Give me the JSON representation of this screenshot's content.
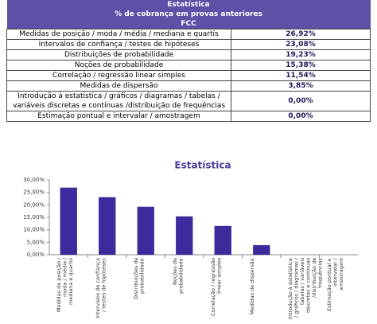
{
  "table": {
    "header": [
      "Estatística",
      "% de cobrança em provas anteriores",
      "FCC"
    ],
    "rows": [
      [
        "Medidas de posição / moda / média / mediana e quartis",
        "26,92%"
      ],
      [
        "Intervalos de confiança / testes de hipóteses",
        "23,08%"
      ],
      [
        "Distribuições de probabilidade",
        "19,23%"
      ],
      [
        "Noções de probabilidade",
        "15,38%"
      ],
      [
        "Correlação / regressão linear simples",
        "11,54%"
      ],
      [
        "Medidas de dispersão",
        "3,85%"
      ],
      [
        "Introdução à estatística / gráficos / diagramas / tabelas / variáveis discretas e contínuas /distribuição de frequências",
        "0,00%"
      ],
      [
        "Estimação pontual e intervalar / amostragem",
        "0,00%"
      ]
    ]
  },
  "chart_data": {
    "type": "bar",
    "title": "Estatística",
    "categories": [
      "Medidas de posição / moda / média / mediana e quartis",
      "Intervalos de confiança / testes de hipóteses",
      "Distribuições de probabilidade",
      "Noções de probabilidade",
      "Correlação / regressão linear simples",
      "Medidas de dispersão",
      "Introdução à estatística / gráficos / diagramas / tabelas / variáveis discretas e contínuas /distribuição de frequências",
      "Estimação pontual e intervalar / amostragem"
    ],
    "values": [
      26.92,
      23.08,
      19.23,
      15.38,
      11.54,
      3.85,
      0,
      0
    ],
    "color": "#3b2b9c",
    "ylim": [
      0,
      30
    ],
    "yticks": [
      {
        "value": 0,
        "label": "0,00%"
      },
      {
        "value": 5,
        "label": "5,00%"
      },
      {
        "value": 10,
        "label": "10,00%"
      },
      {
        "value": 15,
        "label": "15,00%"
      },
      {
        "value": 20,
        "label": "20,00%"
      },
      {
        "value": 25,
        "label": "25,00%"
      },
      {
        "value": 30,
        "label": "30,00%"
      }
    ]
  }
}
